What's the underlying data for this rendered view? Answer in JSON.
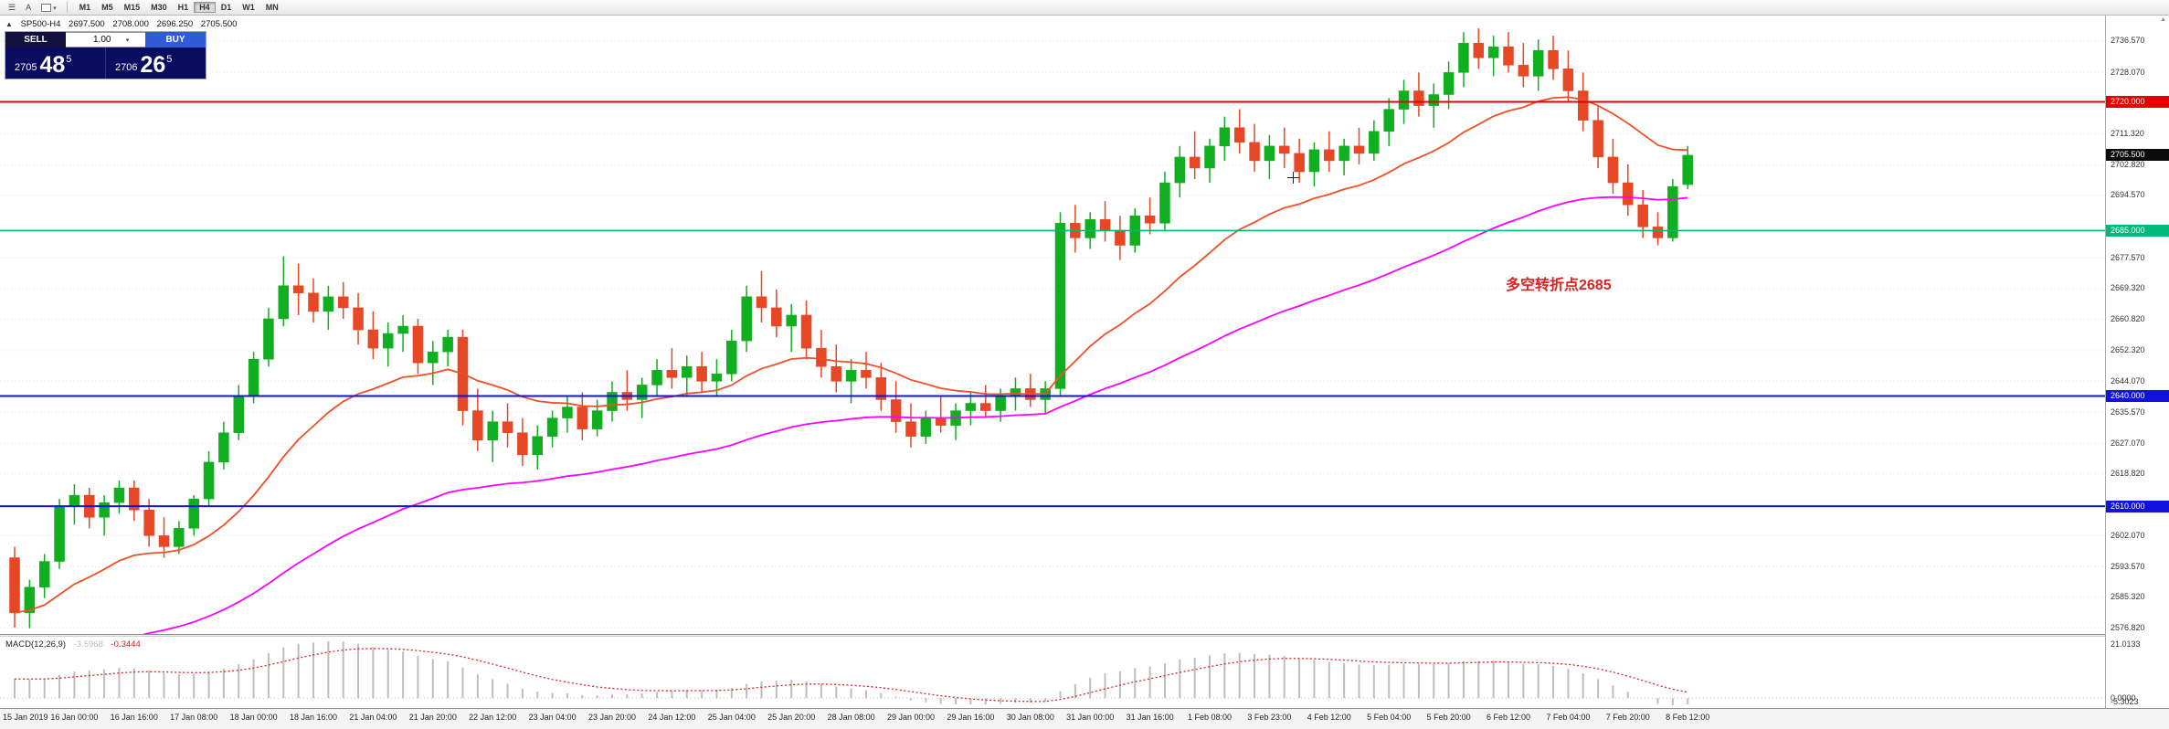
{
  "toolbar": {
    "timeframes": [
      "M1",
      "M5",
      "M15",
      "M30",
      "H1",
      "H4",
      "D1",
      "W1",
      "MN"
    ],
    "active_timeframe": "H4",
    "letter_tool": "A"
  },
  "icons": {
    "menu": "☰",
    "chevron_down": "▾",
    "panel_collapse": "▲",
    "shift_marker": "▲"
  },
  "chart_header": {
    "symbol": "SP500-H4",
    "open": "2697.500",
    "high": "2708.000",
    "low": "2696.250",
    "close": "2705.500"
  },
  "trade_panel": {
    "sell_label": "SELL",
    "buy_label": "BUY",
    "volume": "1.00",
    "bid": {
      "main": "2705",
      "big": "48",
      "sup": "5"
    },
    "ask": {
      "main": "2706",
      "big": "26",
      "sup": "5"
    }
  },
  "annotation": {
    "text": "多空转折点2685",
    "color": "#dd2222"
  },
  "price_scale": {
    "ticks": [
      "2736.570",
      "2728.070",
      "2711.320",
      "2702.820",
      "2694.570",
      "2677.570",
      "2669.320",
      "2660.820",
      "2652.320",
      "2644.070",
      "2635.570",
      "2627.070",
      "2618.820",
      "2602.070",
      "2593.570",
      "2585.320",
      "2576.820"
    ],
    "special": [
      {
        "text": "2720.000",
        "price": 2720.0,
        "bg": "#e40000",
        "kind": "resistance-line-label"
      },
      {
        "text": "2705.500",
        "price": 2705.5,
        "bg": "#0b0b0b",
        "kind": "current-price-label"
      },
      {
        "text": "2685.000",
        "price": 2685.0,
        "bg": "#00b87a",
        "kind": "pivot-line-label"
      },
      {
        "text": "2640.000",
        "price": 2640.0,
        "bg": "#1212dd",
        "kind": "support-line-label"
      },
      {
        "text": "2610.000",
        "price": 2610.0,
        "bg": "#1212dd",
        "kind": "support-line-label"
      }
    ]
  },
  "macd": {
    "label": "MACD(12,26,9)",
    "value_main": "-3.5968",
    "value_signal": "-0.3444",
    "axis_max": "21.0133",
    "axis_zero": "0.0000",
    "axis_min": "-5.3023",
    "fast": 12,
    "slow": 26,
    "signal": 9,
    "histogram_color": "#bdbdbd",
    "signal_color": "#e02020"
  },
  "chart_data": {
    "type": "candlestick",
    "symbol": "SP500",
    "timeframe": "H4",
    "price_range": {
      "min": 2575.0,
      "max": 2743.5
    },
    "up_color": "#0faf20",
    "down_color": "#e64724",
    "ma_fast": {
      "period": 18,
      "color": "#ef5026"
    },
    "ma_slow": {
      "period": 55,
      "color": "#ff00ff"
    },
    "hlines": [
      {
        "name": "resistance-line-2720",
        "price": 2720,
        "color": "#e40000",
        "width": 2
      },
      {
        "name": "pivot-line-2685",
        "price": 2685,
        "color": "#00b87a",
        "width": 1.6
      },
      {
        "name": "support-line-2640",
        "price": 2640,
        "color": "#1212dd",
        "width": 2
      },
      {
        "name": "support-line-2610",
        "price": 2610,
        "color": "#1212dd",
        "width": 2
      }
    ],
    "x_label_step": 4,
    "time_labels": [
      "15 Jan 2019",
      "16 Jan 00:00",
      "16 Jan 16:00",
      "17 Jan 08:00",
      "18 Jan 00:00",
      "18 Jan 16:00",
      "21 Jan 04:00",
      "21 Jan 20:00",
      "22 Jan 12:00",
      "23 Jan 04:00",
      "23 Jan 20:00",
      "24 Jan 12:00",
      "25 Jan 04:00",
      "25 Jan 20:00",
      "28 Jan 08:00",
      "29 Jan 00:00",
      "29 Jan 16:00",
      "30 Jan 08:00",
      "31 Jan 00:00",
      "31 Jan 16:00",
      "1 Feb 08:00",
      "3 Feb 23:00",
      "4 Feb 12:00",
      "5 Feb 04:00",
      "5 Feb 20:00",
      "6 Feb 12:00",
      "7 Feb 04:00",
      "7 Feb 20:00",
      "8 Feb 12:00"
    ],
    "candles": [
      [
        2596,
        2599,
        2577,
        2581
      ],
      [
        2581,
        2590,
        2576.8,
        2588
      ],
      [
        2588,
        2597,
        2585,
        2595
      ],
      [
        2595,
        2612,
        2593,
        2610
      ],
      [
        2610,
        2616,
        2605,
        2613
      ],
      [
        2613,
        2615,
        2604,
        2607
      ],
      [
        2607,
        2613,
        2602,
        2611
      ],
      [
        2611,
        2617,
        2608,
        2615
      ],
      [
        2615,
        2617,
        2606,
        2609
      ],
      [
        2609,
        2612,
        2599,
        2602
      ],
      [
        2602,
        2607,
        2596,
        2599
      ],
      [
        2599,
        2606,
        2597,
        2604
      ],
      [
        2604,
        2613,
        2602,
        2612
      ],
      [
        2612,
        2625,
        2610,
        2622
      ],
      [
        2622,
        2633,
        2620,
        2630
      ],
      [
        2630,
        2643,
        2628,
        2640
      ],
      [
        2640,
        2652,
        2638,
        2650
      ],
      [
        2650,
        2664,
        2648,
        2661
      ],
      [
        2661,
        2678,
        2659,
        2670
      ],
      [
        2670,
        2676,
        2662,
        2668
      ],
      [
        2668,
        2672,
        2660,
        2663
      ],
      [
        2663,
        2670,
        2658,
        2667
      ],
      [
        2667,
        2671,
        2661,
        2664
      ],
      [
        2664,
        2668,
        2654,
        2658
      ],
      [
        2658,
        2663,
        2650,
        2653
      ],
      [
        2653,
        2660,
        2648,
        2657
      ],
      [
        2657,
        2662,
        2652,
        2659
      ],
      [
        2659,
        2661,
        2646,
        2649
      ],
      [
        2649,
        2655,
        2643,
        2652
      ],
      [
        2652,
        2658,
        2648,
        2656
      ],
      [
        2656,
        2658,
        2632,
        2636
      ],
      [
        2636,
        2642,
        2625,
        2628
      ],
      [
        2628,
        2636,
        2622,
        2633
      ],
      [
        2633,
        2638,
        2626,
        2630
      ],
      [
        2630,
        2634,
        2621,
        2624
      ],
      [
        2624,
        2632,
        2620,
        2629
      ],
      [
        2629,
        2636,
        2626,
        2634
      ],
      [
        2634,
        2640,
        2630,
        2637
      ],
      [
        2637,
        2641,
        2628,
        2631
      ],
      [
        2631,
        2639,
        2629,
        2636
      ],
      [
        2636,
        2644,
        2633,
        2641
      ],
      [
        2641,
        2647,
        2636,
        2639
      ],
      [
        2639,
        2645,
        2634,
        2643
      ],
      [
        2643,
        2650,
        2640,
        2647
      ],
      [
        2647,
        2653,
        2642,
        2645
      ],
      [
        2645,
        2651,
        2640,
        2648
      ],
      [
        2648,
        2652,
        2641,
        2644
      ],
      [
        2644,
        2650,
        2640,
        2646
      ],
      [
        2646,
        2658,
        2644,
        2655
      ],
      [
        2655,
        2670,
        2652,
        2667
      ],
      [
        2667,
        2674,
        2660,
        2664
      ],
      [
        2664,
        2669,
        2656,
        2659
      ],
      [
        2659,
        2665,
        2652,
        2662
      ],
      [
        2662,
        2666,
        2650,
        2653
      ],
      [
        2653,
        2658,
        2645,
        2648
      ],
      [
        2648,
        2654,
        2641,
        2644
      ],
      [
        2644,
        2650,
        2638,
        2647
      ],
      [
        2647,
        2652,
        2642,
        2645
      ],
      [
        2645,
        2649,
        2636,
        2639
      ],
      [
        2639,
        2644,
        2630,
        2633
      ],
      [
        2633,
        2638,
        2626,
        2629
      ],
      [
        2629,
        2636,
        2627,
        2634
      ],
      [
        2634,
        2640,
        2630,
        2632
      ],
      [
        2632,
        2638,
        2628,
        2636
      ],
      [
        2636,
        2641,
        2632,
        2638
      ],
      [
        2638,
        2643,
        2634,
        2636
      ],
      [
        2636,
        2642,
        2633,
        2640
      ],
      [
        2640,
        2645,
        2636,
        2642
      ],
      [
        2642,
        2646,
        2637,
        2639
      ],
      [
        2639,
        2644,
        2635,
        2642
      ],
      [
        2642,
        2690,
        2640,
        2687
      ],
      [
        2687,
        2692,
        2679,
        2683
      ],
      [
        2683,
        2690,
        2680,
        2688
      ],
      [
        2688,
        2693,
        2682,
        2685
      ],
      [
        2685,
        2689,
        2677,
        2681
      ],
      [
        2681,
        2691,
        2679,
        2689
      ],
      [
        2689,
        2694,
        2684,
        2687
      ],
      [
        2687,
        2701,
        2685,
        2698
      ],
      [
        2698,
        2708,
        2694,
        2705
      ],
      [
        2705,
        2712,
        2699,
        2702
      ],
      [
        2702,
        2710,
        2698,
        2708
      ],
      [
        2708,
        2716,
        2704,
        2713
      ],
      [
        2713,
        2718,
        2706,
        2709
      ],
      [
        2709,
        2714,
        2701,
        2704
      ],
      [
        2704,
        2711,
        2699,
        2708
      ],
      [
        2708,
        2713,
        2702,
        2706
      ],
      [
        2706,
        2710,
        2698,
        2701
      ],
      [
        2701,
        2709,
        2697,
        2707
      ],
      [
        2707,
        2712,
        2701,
        2704
      ],
      [
        2704,
        2710,
        2700,
        2708
      ],
      [
        2708,
        2713,
        2703,
        2706
      ],
      [
        2706,
        2715,
        2704,
        2712
      ],
      [
        2712,
        2721,
        2708,
        2718
      ],
      [
        2718,
        2726,
        2714,
        2723
      ],
      [
        2723,
        2728,
        2716,
        2719
      ],
      [
        2719,
        2725,
        2713,
        2722
      ],
      [
        2722,
        2731,
        2718,
        2728
      ],
      [
        2728,
        2739,
        2724,
        2736
      ],
      [
        2736,
        2740,
        2729,
        2732
      ],
      [
        2732,
        2738,
        2727,
        2735
      ],
      [
        2735,
        2739,
        2728,
        2730
      ],
      [
        2730,
        2736,
        2724,
        2727
      ],
      [
        2727,
        2737,
        2723,
        2734
      ],
      [
        2734,
        2738,
        2726,
        2729
      ],
      [
        2729,
        2734,
        2720,
        2723
      ],
      [
        2723,
        2728,
        2712,
        2715
      ],
      [
        2715,
        2719,
        2702,
        2705
      ],
      [
        2705,
        2710,
        2695,
        2698
      ],
      [
        2698,
        2703,
        2689,
        2692
      ],
      [
        2692,
        2696,
        2683,
        2686
      ],
      [
        2686,
        2690,
        2681,
        2683
      ],
      [
        2683,
        2699,
        2682,
        2697
      ],
      [
        2697.5,
        2708,
        2696.25,
        2705.5
      ]
    ]
  }
}
